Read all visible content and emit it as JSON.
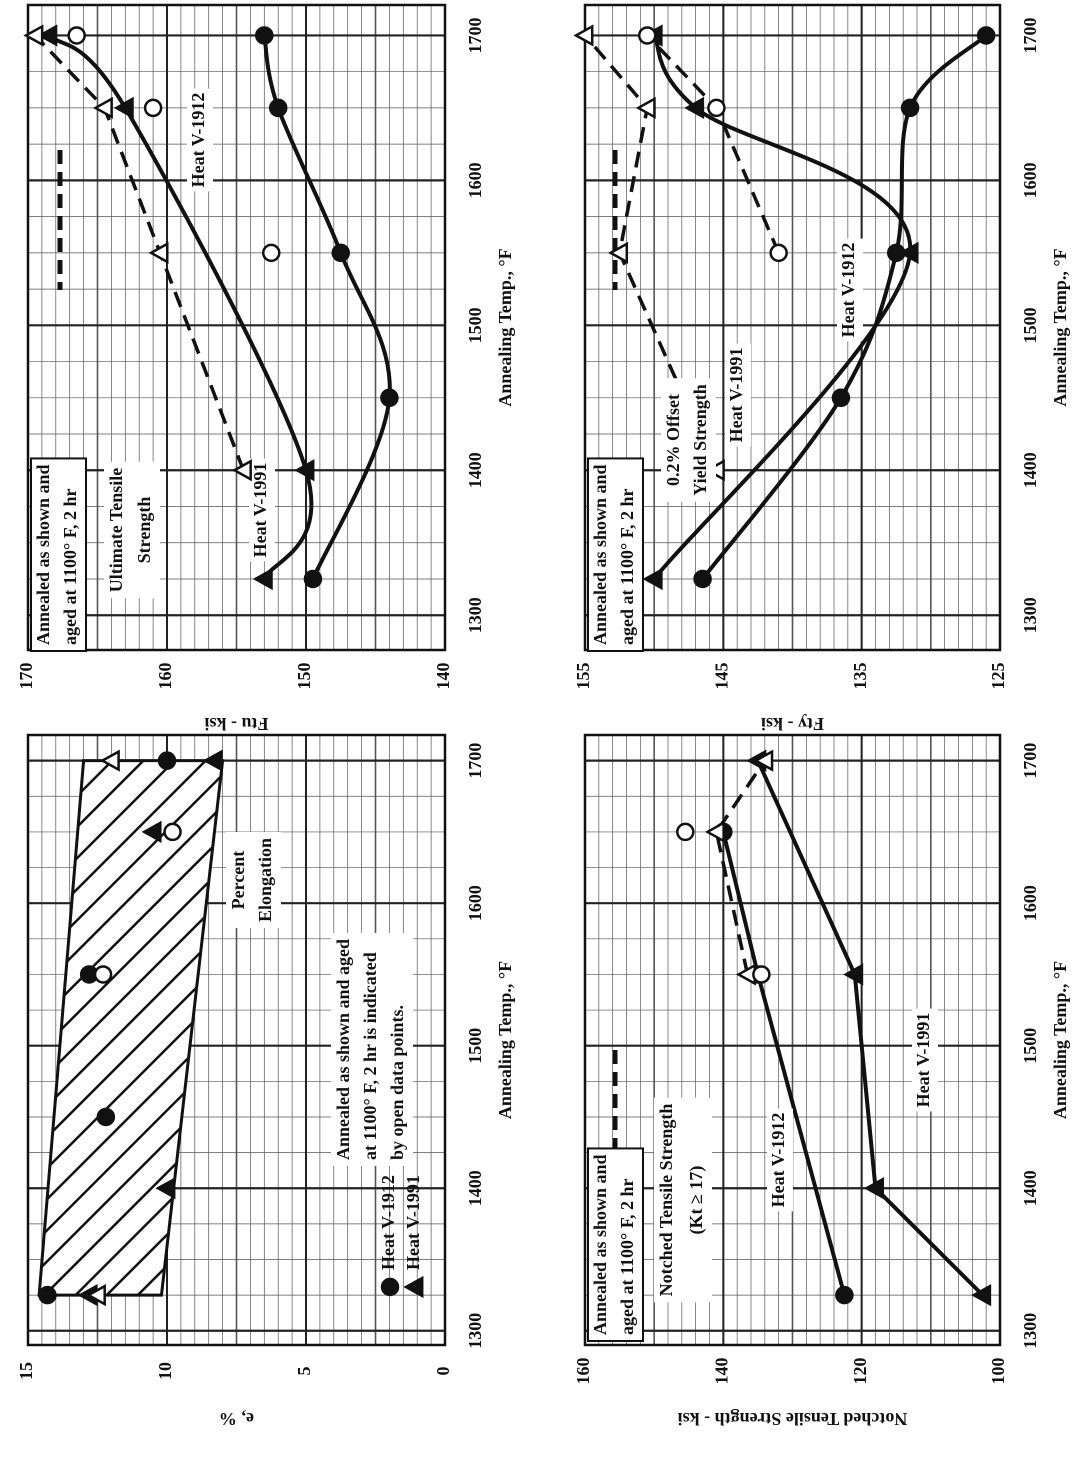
{
  "charts": [
    {
      "chart_data": {
        "type": "scatter",
        "color": "#111111",
        "x_label": "Annealing Temp., °F",
        "y_label": "Ftu - ksi",
        "xlim": [
          1276,
          1721
        ],
        "xticks": [
          1300,
          1400,
          1500,
          1600,
          1700
        ],
        "ylim": [
          140,
          170
        ],
        "yticks": [
          140,
          150,
          160,
          170
        ],
        "grid": true,
        "annotations": [
          {
            "text": [
              "Annealed as shown and",
              "aged at 1100° F, 2 hr"
            ]
          },
          {
            "text": [
              "Ultimate Tensile",
              "Strength"
            ]
          }
        ],
        "series": [
          {
            "name": "Heat V-1912",
            "marker": "circle",
            "filled": true,
            "line": "curve",
            "x": [
              1325,
              1450,
              1550,
              1650,
              1700
            ],
            "values": [
              149.5,
              144,
              147.5,
              152,
              153
            ]
          },
          {
            "name": "Heat V-1991",
            "marker": "triangle",
            "filled": true,
            "line": "curve",
            "x": [
              1325,
              1400,
              1650,
              1700
            ],
            "values": [
              153,
              150,
              163,
              168.5
            ]
          },
          {
            "marker": "triangle",
            "filled": false,
            "line": "dashed",
            "x": [
              1400,
              1550,
              1650,
              1700
            ],
            "values": [
              154.5,
              160.5,
              164.5,
              169.5
            ]
          },
          {
            "marker": "circle",
            "filled": false,
            "line": "none",
            "x": [
              1550,
              1650,
              1700
            ],
            "values": [
              152.5,
              161,
              166.5
            ]
          }
        ]
      }
    },
    {
      "chart_data": {
        "type": "scatter",
        "color": "#111111",
        "x_label": "Annealing Temp., °F",
        "y_label": "Fty - ksi",
        "xlim": [
          1276,
          1721
        ],
        "xticks": [
          1300,
          1400,
          1500,
          1600,
          1700
        ],
        "ylim": [
          125,
          155
        ],
        "yticks": [
          125,
          135,
          145,
          155
        ],
        "grid": true,
        "annotations": [
          {
            "text": [
              "Annealed as shown and",
              "aged at 1100° F, 2 hr"
            ]
          },
          {
            "text": [
              "0.2% Offset",
              "Yield Strength"
            ]
          }
        ],
        "series": [
          {
            "name": "Heat V-1912",
            "marker": "circle",
            "filled": true,
            "line": "curve",
            "x": [
              1325,
              1450,
              1550,
              1650,
              1700
            ],
            "values": [
              146.5,
              136.5,
              132.5,
              131.5,
              126
            ]
          },
          {
            "name": "Heat V-1991",
            "marker": "triangle",
            "filled": true,
            "line": "curve",
            "x": [
              1325,
              1550,
              1650,
              1700
            ],
            "values": [
              150,
              131.5,
              147,
              150
            ]
          },
          {
            "marker": "triangle",
            "filled": false,
            "line": "dashed",
            "x": [
              1400,
              1550,
              1650,
              1700
            ],
            "values": [
              145.5,
              152.5,
              150.5,
              155
            ]
          },
          {
            "marker": "circle",
            "filled": false,
            "line": "dashed",
            "x": [
              1550,
              1650,
              1700
            ],
            "values": [
              141,
              145.5,
              150.5
            ]
          }
        ]
      }
    },
    {
      "chart_data": {
        "type": "scatter",
        "color": "#111111",
        "x_label": "Annealing Temp., °F",
        "y_label": "e, %",
        "xlim": [
          1290,
          1718
        ],
        "xticks": [
          1300,
          1400,
          1500,
          1600,
          1700
        ],
        "ylim": [
          0,
          15
        ],
        "yticks": [
          0,
          5,
          10,
          15
        ],
        "grid": true,
        "annotations": [
          {
            "text": [
              "Percent",
              "Elongation"
            ]
          },
          {
            "text": [
              "Annealed as shown and aged",
              "at 1100° F, 2 hr is indicated",
              "by open data points."
            ]
          }
        ],
        "band": {
          "x": [
            1325,
            1700
          ],
          "upper": [
            14.6,
            13
          ],
          "lower": [
            10.2,
            8
          ]
        },
        "series": [
          {
            "name": "Heat V-1912",
            "marker": "circle",
            "filled": true,
            "line": "none",
            "x": [
              1325,
              1450,
              1550,
              1700
            ],
            "values": [
              14.3,
              12.2,
              12.8,
              10
            ]
          },
          {
            "name": "Heat V-1991",
            "marker": "triangle",
            "filled": true,
            "line": "none",
            "x": [
              1325,
              1400,
              1650,
              1700
            ],
            "values": [
              12.8,
              10,
              10.5,
              8.3
            ]
          },
          {
            "marker": "circle",
            "filled": false,
            "line": "none",
            "x": [
              1550,
              1650
            ],
            "values": [
              12.3,
              9.8
            ]
          },
          {
            "marker": "triangle",
            "filled": false,
            "line": "none",
            "x": [
              1325,
              1700
            ],
            "values": [
              12.5,
              12
            ]
          }
        ]
      }
    },
    {
      "chart_data": {
        "type": "scatter",
        "color": "#111111",
        "x_label": "Annealing Temp., °F",
        "y_label": "Notched Tensile Strength - ksi",
        "xlim": [
          1290,
          1718
        ],
        "xticks": [
          1300,
          1400,
          1500,
          1600,
          1700
        ],
        "ylim": [
          100,
          160
        ],
        "yticks": [
          100,
          120,
          140,
          160
        ],
        "grid": true,
        "annotations": [
          {
            "text": [
              "Annealed as shown and",
              "aged at 1100° F, 2 hr"
            ]
          },
          {
            "text": [
              "Notched Tensile Strength",
              "(Kt ≥ 17)"
            ]
          }
        ],
        "series": [
          {
            "name": "Heat V-1912",
            "marker": "circle",
            "filled": true,
            "line": "straight",
            "x": [
              1325,
              1550,
              1650
            ],
            "values": [
              122.5,
              135,
              140
            ]
          },
          {
            "name": "Heat V-1991",
            "marker": "triangle",
            "filled": true,
            "line": "straight",
            "x": [
              1325,
              1400,
              1550,
              1700
            ],
            "values": [
              102.5,
              118,
              121,
              135
            ]
          },
          {
            "marker": "triangle",
            "filled": false,
            "line": "dashed",
            "x": [
              1550,
              1650,
              1700
            ],
            "values": [
              136.5,
              141,
              134
            ]
          },
          {
            "marker": "circle",
            "filled": false,
            "line": "none",
            "x": [
              1550,
              1650
            ],
            "values": [
              134.5,
              145.5
            ]
          }
        ]
      }
    }
  ]
}
